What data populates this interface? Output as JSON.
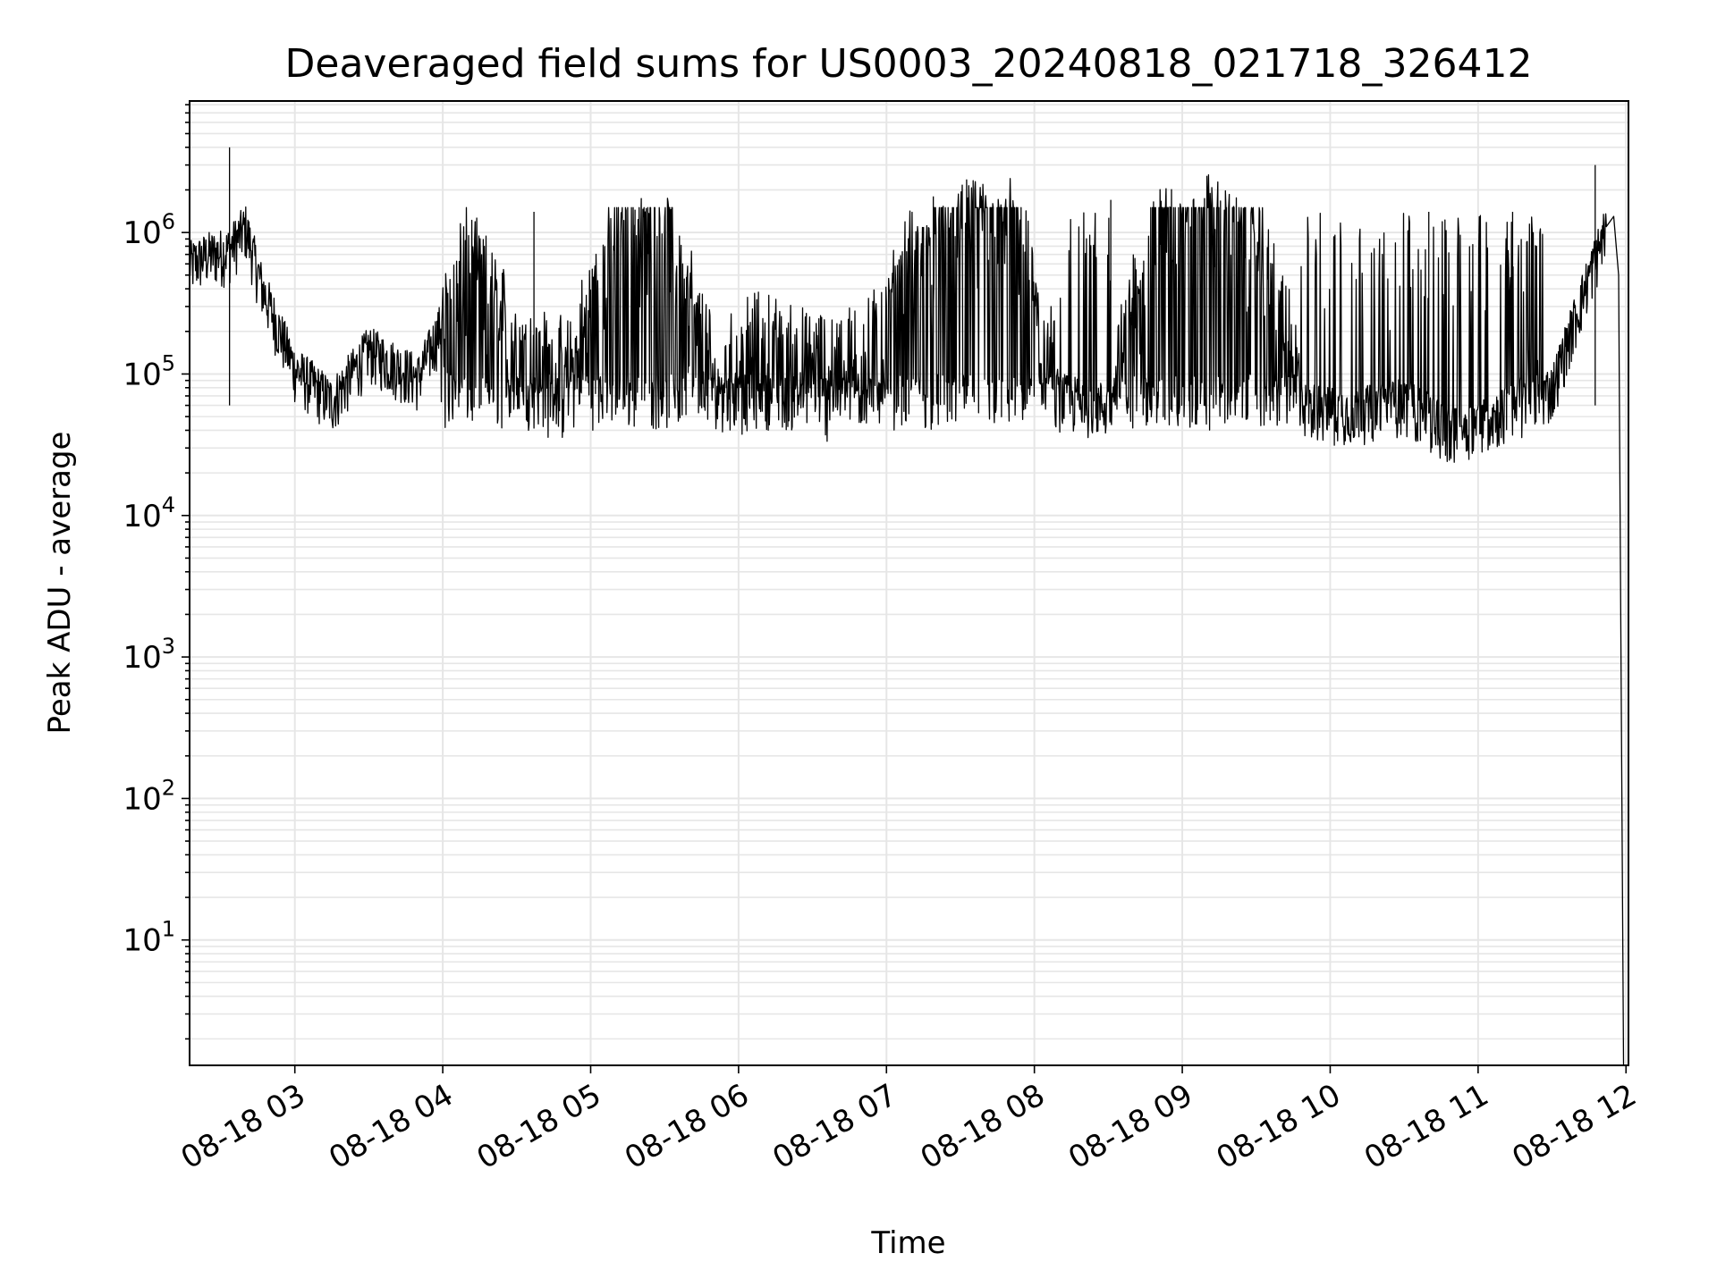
{
  "chart_data": {
    "type": "line",
    "title": "Deaveraged field sums for US0003_20240818_021718_326412",
    "xlabel": "Time",
    "ylabel": "Peak ADU - average",
    "yscale": "log",
    "ylim": [
      1.3,
      8500000
    ],
    "xlim": [
      "2024-08-18 02:17:18",
      "2024-08-18 12:01:00"
    ],
    "x_tick_labels": [
      "08-18 03",
      "08-18 04",
      "08-18 05",
      "08-18 06",
      "08-18 07",
      "08-18 08",
      "08-18 09",
      "08-18 10",
      "08-18 11",
      "08-18 12"
    ],
    "y_tick_labels": [
      {
        "base": "10",
        "exp": "1"
      },
      {
        "base": "10",
        "exp": "2"
      },
      {
        "base": "10",
        "exp": "3"
      },
      {
        "base": "10",
        "exp": "4"
      },
      {
        "base": "10",
        "exp": "5"
      },
      {
        "base": "10",
        "exp": "6"
      }
    ],
    "grid": true,
    "line_color": "#000000",
    "grid_color": "#e6e6e6",
    "series": [
      {
        "x": [
          "2024-08-18 02:17:18",
          "2024-08-18 02:25:00",
          "2024-08-18 02:33:00",
          "2024-08-18 02:40:00",
          "2024-08-18 02:47:00",
          "2024-08-18 03:00:00",
          "2024-08-18 03:15:00",
          "2024-08-18 03:30:00",
          "2024-08-18 03:50:00",
          "2024-08-18 04:10:00",
          "2024-08-18 04:30:00",
          "2024-08-18 04:50:00",
          "2024-08-18 05:10:00",
          "2024-08-18 05:30:00",
          "2024-08-18 05:50:00",
          "2024-08-18 06:10:00",
          "2024-08-18 06:30:00",
          "2024-08-18 06:50:00",
          "2024-08-18 07:10:00",
          "2024-08-18 07:30:00",
          "2024-08-18 07:50:00",
          "2024-08-18 08:10:00",
          "2024-08-18 08:30:00",
          "2024-08-18 08:50:00",
          "2024-08-18 09:10:00",
          "2024-08-18 09:30:00",
          "2024-08-18 09:50:00",
          "2024-08-18 10:10:00",
          "2024-08-18 10:30:00",
          "2024-08-18 10:50:00",
          "2024-08-18 11:10:00",
          "2024-08-18 11:30:00",
          "2024-08-18 11:45:00",
          "2024-08-18 11:52:00",
          "2024-08-18 11:55:00",
          "2024-08-18 11:57:00",
          "2024-08-18 11:59:00"
        ],
        "y": [
          600000,
          700000,
          750000,
          1100000,
          400000,
          110000,
          65000,
          150000,
          95000,
          600000,
          150000,
          90000,
          800000,
          1200000,
          85000,
          150000,
          100000,
          110000,
          550000,
          1300000,
          1400000,
          70000,
          60000,
          1200000,
          1500000,
          800000,
          60000,
          55000,
          65000,
          40000,
          55000,
          80000,
          500000,
          1100000,
          1300000,
          500000,
          1.3
        ]
      }
    ],
    "spikes": [
      {
        "x": "2024-08-18 02:33:30",
        "y": 4000000
      },
      {
        "x": "2024-08-18 11:47:30",
        "y": 3000000
      },
      {
        "x": "2024-08-18 07:19:00",
        "y": 1800000
      },
      {
        "x": "2024-08-18 05:18:00",
        "y": 1450000
      },
      {
        "x": "2024-08-18 04:37:00",
        "y": 1400000
      },
      {
        "x": "2024-08-18 08:31:00",
        "y": 1700000
      },
      {
        "x": "2024-08-18 09:09:00",
        "y": 1750000
      },
      {
        "x": "2024-08-18 10:40:00",
        "y": 1400000
      },
      {
        "x": "2024-08-18 11:14:00",
        "y": 1400000
      }
    ]
  }
}
